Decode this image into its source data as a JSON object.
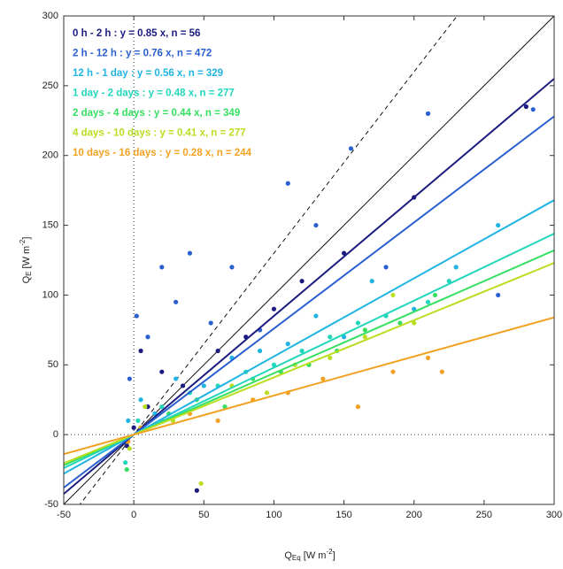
{
  "chart_data": {
    "type": "scatter",
    "xlabel": [
      "Q",
      "Eq",
      " [W m",
      "-2",
      "]"
    ],
    "ylabel": [
      "Q",
      "E",
      " [W m",
      "-2",
      "]"
    ],
    "xlim": [
      -50,
      300
    ],
    "ylim": [
      -50,
      300
    ],
    "xticks": [
      -50,
      0,
      50,
      100,
      150,
      200,
      250,
      300
    ],
    "yticks": [
      -50,
      0,
      50,
      100,
      150,
      200,
      250,
      300
    ],
    "zero_lines": true,
    "reference_lines": [
      {
        "slope": 1,
        "style": "solid"
      },
      {
        "slope": 1.3,
        "style": "dashed"
      }
    ],
    "series": [
      {
        "name": "0 h - 2 h : y = 0.85 x, n = 56",
        "color": "#1c1c80",
        "slope": 0.85,
        "x": [
          -5,
          0,
          5,
          10,
          20,
          35,
          45,
          60,
          80,
          100,
          120,
          150,
          200,
          280
        ],
        "values": [
          -8,
          5,
          60,
          20,
          45,
          35,
          -40,
          60,
          70,
          90,
          110,
          130,
          170,
          235
        ]
      },
      {
        "name": "2 h - 12 h : y = 0.76 x, n = 472",
        "color": "#2a5fd0",
        "slope": 0.76,
        "x": [
          -3,
          2,
          10,
          20,
          30,
          40,
          55,
          70,
          90,
          110,
          130,
          155,
          180,
          210,
          260,
          285
        ],
        "values": [
          40,
          85,
          70,
          120,
          95,
          130,
          80,
          120,
          75,
          180,
          150,
          205,
          120,
          230,
          100,
          233
        ]
      },
      {
        "name": "12 h - 1 day : y = 0.56 x, n = 329",
        "color": "#20b4e2",
        "slope": 0.56,
        "x": [
          -4,
          5,
          15,
          30,
          50,
          70,
          90,
          110,
          130,
          150,
          170,
          200,
          230,
          260
        ],
        "values": [
          10,
          25,
          15,
          40,
          35,
          55,
          60,
          65,
          85,
          70,
          110,
          90,
          120,
          150
        ]
      },
      {
        "name": "1 day - 2 days : y = 0.48 x, n = 277",
        "color": "#22d6bc",
        "slope": 0.48,
        "x": [
          -6,
          3,
          20,
          40,
          60,
          80,
          100,
          120,
          140,
          160,
          180,
          210,
          225
        ],
        "values": [
          -20,
          10,
          20,
          30,
          35,
          45,
          50,
          60,
          70,
          80,
          85,
          95,
          110
        ]
      },
      {
        "name": "2 days - 4 days : y = 0.44 x, n = 349",
        "color": "#36df62",
        "slope": 0.44,
        "x": [
          -5,
          5,
          25,
          45,
          65,
          85,
          105,
          125,
          145,
          165,
          190,
          215
        ],
        "values": [
          -25,
          5,
          15,
          25,
          20,
          40,
          45,
          50,
          60,
          75,
          80,
          100
        ]
      },
      {
        "name": "4 days - 10 days : y = 0.41 x, n = 277",
        "color": "#bade22",
        "slope": 0.41,
        "x": [
          -3,
          8,
          28,
          48,
          70,
          95,
          115,
          140,
          165,
          185,
          200
        ],
        "values": [
          -10,
          20,
          10,
          -35,
          35,
          30,
          50,
          55,
          70,
          100,
          80
        ]
      },
      {
        "name": "10 days - 16 days : y = 0.28 x, n = 244",
        "color": "#f2a222",
        "slope": 0.28,
        "x": [
          -4,
          5,
          20,
          40,
          60,
          85,
          110,
          135,
          160,
          185,
          210,
          220
        ],
        "values": [
          -5,
          5,
          10,
          15,
          10,
          25,
          30,
          40,
          20,
          45,
          55,
          45
        ]
      }
    ]
  }
}
